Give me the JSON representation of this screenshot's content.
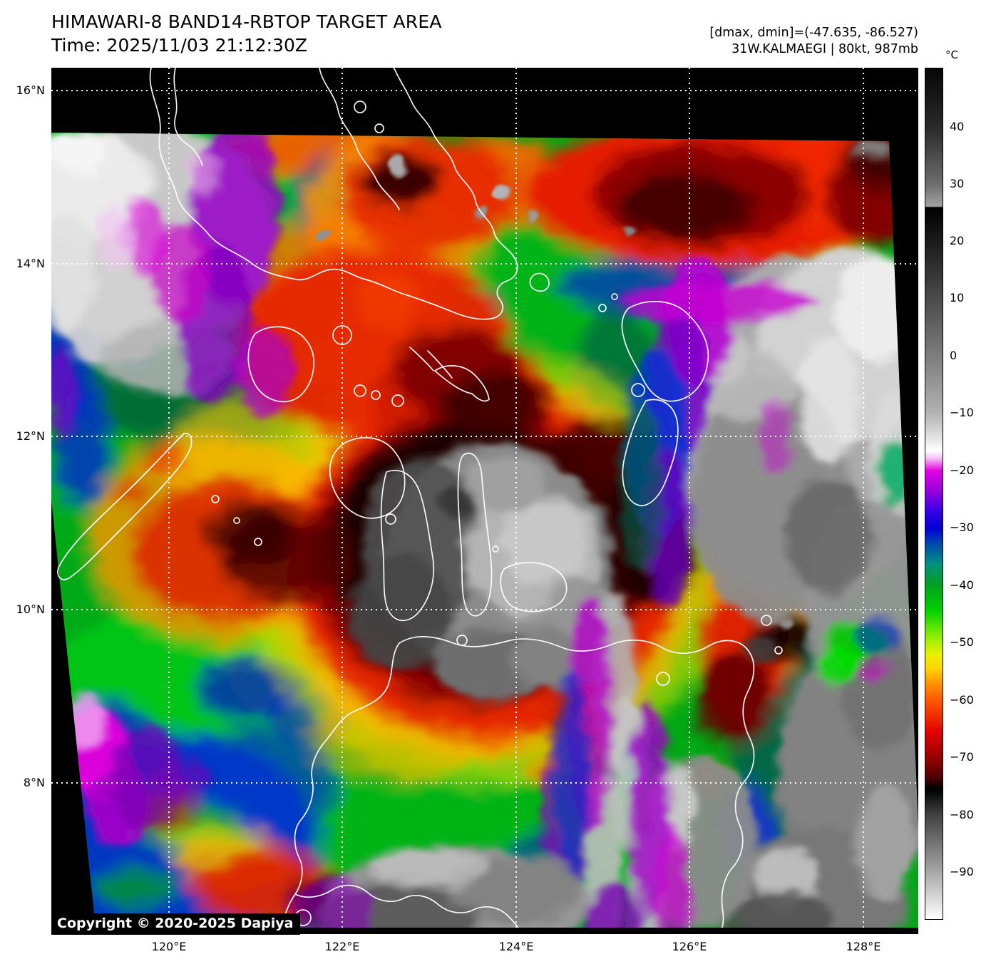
{
  "header": {
    "title": "HIMAWARI-8 BAND14-RBTOP TARGET AREA",
    "time": "Time: 2025/11/03 21:12:30Z",
    "dmax_dmin": "[dmax, dmin]=(-47.635, -86.527)",
    "storm": "31W.KALMAEGI | 80kt, 987mb"
  },
  "colorbar": {
    "unit": "°C",
    "ticks": [
      "40",
      "30",
      "20",
      "10",
      "0",
      "−10",
      "−20",
      "−30",
      "−40",
      "−50",
      "−60",
      "−70",
      "−80",
      "−90"
    ]
  },
  "axes": {
    "lat_labels": [
      "16°N",
      "14°N",
      "12°N",
      "10°N",
      "8°N"
    ],
    "lon_labels": [
      "120°E",
      "122°E",
      "124°E",
      "126°E",
      "128°E"
    ]
  },
  "map": {
    "copyright": "Copyright © 2020-2025 Dapiya"
  }
}
